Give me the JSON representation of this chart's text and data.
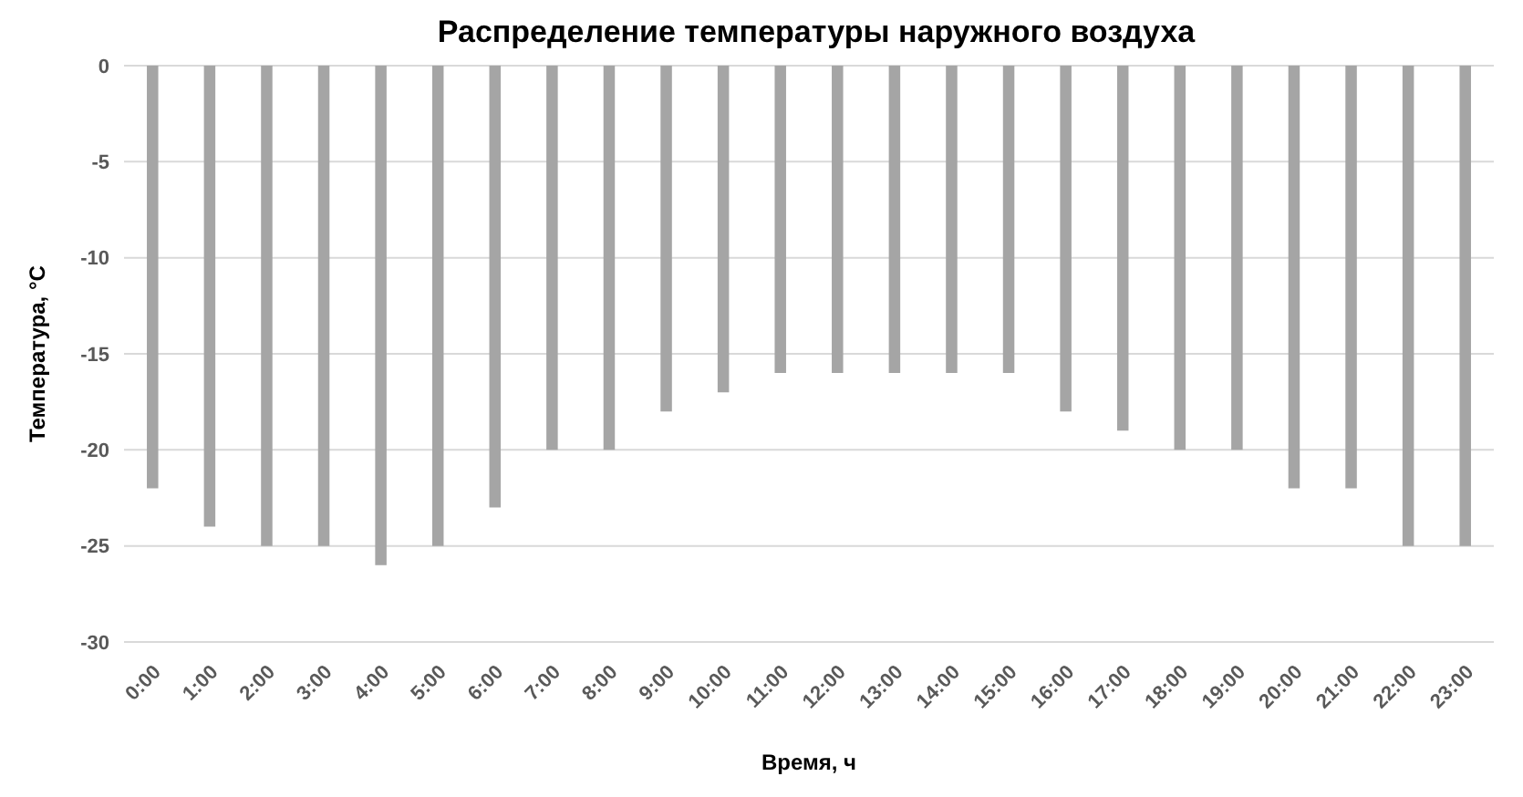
{
  "chart_data": {
    "type": "bar",
    "title": "Распределение температуры наружного воздуха",
    "xlabel": "Время, ч",
    "ylabel": "Температура, °С",
    "categories": [
      "0:00",
      "1:00",
      "2:00",
      "3:00",
      "4:00",
      "5:00",
      "6:00",
      "7:00",
      "8:00",
      "9:00",
      "10:00",
      "11:00",
      "12:00",
      "13:00",
      "14:00",
      "15:00",
      "16:00",
      "17:00",
      "18:00",
      "19:00",
      "20:00",
      "21:00",
      "22:00",
      "23:00"
    ],
    "values": [
      -22,
      -24,
      -25,
      -25,
      -26,
      -25,
      -23,
      -20,
      -20,
      -18,
      -17,
      -16,
      -16,
      -16,
      -16,
      -16,
      -18,
      -19,
      -20,
      -20,
      -22,
      -22,
      -25,
      -25
    ],
    "color": "#a5a5a5",
    "ylim": [
      -30,
      0
    ],
    "yticks": [
      -30,
      -25,
      -20,
      -15,
      -10,
      -5,
      0
    ],
    "grid": "y"
  }
}
